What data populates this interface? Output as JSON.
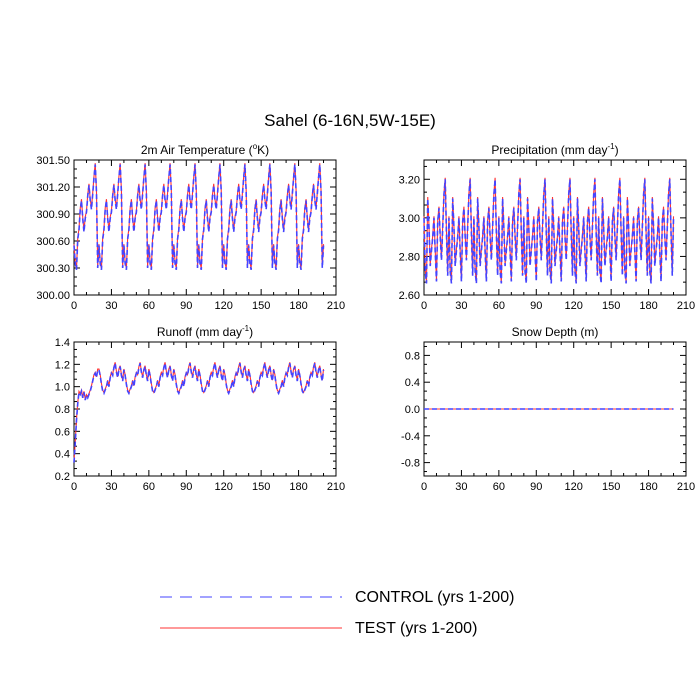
{
  "figure": {
    "title": "Sahel (6-16N,5W-15E)",
    "legend": [
      {
        "label": "CONTROL (yrs 1-200)",
        "color": "#4444ff",
        "dash": "dashed"
      },
      {
        "label": "TEST (yrs 1-200)",
        "color": "#ff3333",
        "dash": "solid"
      }
    ]
  },
  "chart_data": [
    {
      "type": "line",
      "title": "2m Air Temperature (",
      "title_sup": "o",
      "title_after": "K)",
      "xlim": [
        0,
        210
      ],
      "ylim": [
        300.0,
        301.5
      ],
      "xticks": [
        "0",
        "30",
        "60",
        "90",
        "120",
        "150",
        "180",
        "210"
      ],
      "yticks": [
        "300.00",
        "300.30",
        "300.60",
        "300.90",
        "301.20",
        "301.50"
      ],
      "pattern": {
        "x_start": 0,
        "x_end": 200,
        "period": 20,
        "cycle": [
          300.55,
          300.35,
          300.28,
          300.62,
          300.72,
          300.95,
          301.05,
          300.85,
          300.7,
          300.85,
          300.92,
          301.1,
          301.22,
          301.05,
          300.95,
          301.12,
          301.3,
          301.45,
          301.15,
          300.3
        ]
      },
      "series": [
        {
          "name": "CONTROL (yrs 1-200)",
          "offset": 0.0
        },
        {
          "name": "TEST (yrs 1-200)",
          "offset": 0.015
        }
      ]
    },
    {
      "type": "line",
      "title": "Precipitation (mm day",
      "title_sup": "-1",
      "title_after": ")",
      "xlim": [
        0,
        210
      ],
      "ylim": [
        2.6,
        3.3
      ],
      "xticks": [
        "0",
        "30",
        "60",
        "90",
        "120",
        "150",
        "180",
        "210"
      ],
      "yticks": [
        "2.60",
        "2.80",
        "3.00",
        "3.20"
      ],
      "pattern": {
        "x_start": 0,
        "x_end": 200,
        "period": 20,
        "cycle": [
          3.0,
          2.72,
          2.66,
          3.1,
          2.95,
          2.75,
          2.83,
          2.9,
          3.0,
          2.82,
          2.67,
          2.98,
          3.05,
          2.9,
          2.78,
          2.95,
          3.12,
          3.2,
          2.92,
          2.7
        ]
      },
      "series": [
        {
          "name": "CONTROL (yrs 1-200)",
          "offset": 0.0
        },
        {
          "name": "TEST (yrs 1-200)",
          "offset": 0.008
        }
      ]
    },
    {
      "type": "line",
      "title": "Runoff (mm day",
      "title_sup": "-1",
      "title_after": ")",
      "xlim": [
        0,
        210
      ],
      "ylim": [
        0.2,
        1.4
      ],
      "xticks": [
        "0",
        "30",
        "60",
        "90",
        "120",
        "150",
        "180",
        "210"
      ],
      "yticks": [
        "0.2",
        "0.4",
        "0.6",
        "0.8",
        "1.0",
        "1.2",
        "1.4"
      ],
      "spinup": [
        [
          0,
          0.32
        ],
        [
          1,
          0.5
        ],
        [
          2,
          0.7
        ],
        [
          3,
          0.85
        ],
        [
          4,
          0.95
        ],
        [
          5,
          0.93
        ],
        [
          6,
          0.96
        ],
        [
          7,
          0.9
        ],
        [
          8,
          0.95
        ],
        [
          9,
          0.88
        ],
        [
          10,
          0.92
        ],
        [
          11,
          0.9
        ],
        [
          12,
          0.93
        ],
        [
          13,
          0.96
        ],
        [
          14,
          1.0
        ],
        [
          15,
          1.05
        ],
        [
          16,
          1.1
        ],
        [
          17,
          1.12
        ],
        [
          18,
          1.08
        ],
        [
          19,
          1.15
        ]
      ],
      "pattern": {
        "x_start": 20,
        "x_end": 200,
        "period": 20,
        "cycle": [
          1.15,
          1.1,
          1.02,
          0.96,
          0.94,
          0.97,
          1.0,
          1.05,
          1.0,
          1.08,
          1.12,
          1.1,
          1.17,
          1.21,
          1.13,
          1.08,
          1.15,
          1.18,
          1.1,
          1.05
        ]
      },
      "series": [
        {
          "name": "CONTROL (yrs 1-200)",
          "offset": 0.0
        },
        {
          "name": "TEST (yrs 1-200)",
          "offset": 0.008
        }
      ]
    },
    {
      "type": "line",
      "title": "Snow Depth (m)",
      "title_sup": "",
      "title_after": "",
      "xlim": [
        0,
        210
      ],
      "ylim": [
        -1.0,
        1.0
      ],
      "xticks": [
        "0",
        "30",
        "60",
        "90",
        "120",
        "150",
        "180",
        "210"
      ],
      "yticks": [
        "-0.8",
        "-0.4",
        "0.0",
        "0.4",
        "0.8"
      ],
      "pattern": {
        "x_start": 0,
        "x_end": 200,
        "period": 1,
        "cycle": [
          0.0
        ]
      },
      "series": [
        {
          "name": "CONTROL (yrs 1-200)",
          "offset": 0.0
        },
        {
          "name": "TEST (yrs 1-200)",
          "offset": 0.0
        }
      ]
    }
  ]
}
